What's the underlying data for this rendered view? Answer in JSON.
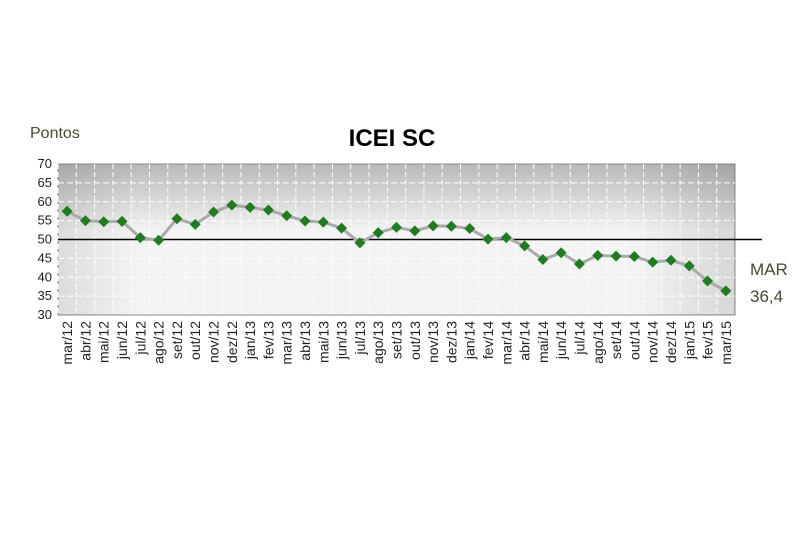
{
  "chart_data": {
    "type": "line",
    "title": "ICEI SC",
    "ylabel": "Pontos",
    "xlabel": "",
    "ylim": [
      30,
      70
    ],
    "yticks": [
      30,
      35,
      40,
      45,
      50,
      55,
      60,
      65,
      70
    ],
    "grid": true,
    "reference_line": 50,
    "categories": [
      "mar/12",
      "abr/12",
      "mai/12",
      "jun/12",
      "jul/12",
      "ago/12",
      "set/12",
      "out/12",
      "nov/12",
      "dez/12",
      "jan/13",
      "fev/13",
      "mar/13",
      "abr/13",
      "mai/13",
      "jun/13",
      "jul/13",
      "ago/13",
      "set/13",
      "out/13",
      "nov/13",
      "dez/13",
      "jan/14",
      "fev/14",
      "mar/14",
      "abr/14",
      "mai/14",
      "jun/14",
      "jul/14",
      "ago/14",
      "set/14",
      "out/14",
      "nov/14",
      "dez/14",
      "jan/15",
      "fev/15",
      "mar/15"
    ],
    "series": [
      {
        "values": [
          57.5,
          55.0,
          54.7,
          54.8,
          50.5,
          49.8,
          55.5,
          54.0,
          57.3,
          59.1,
          58.5,
          57.8,
          56.3,
          54.9,
          54.6,
          53.0,
          49.1,
          51.8,
          53.2,
          52.3,
          53.6,
          53.5,
          52.9,
          50.1,
          50.5,
          48.3,
          44.7,
          46.5,
          43.5,
          45.8,
          45.6,
          45.5,
          44.0,
          44.5,
          43.0,
          39.0,
          36.4
        ],
        "marker_color": "#1e7d1e",
        "line_color": "#aaaaaa"
      }
    ],
    "annotation": {
      "label": "MAR",
      "value": "36,4"
    }
  }
}
